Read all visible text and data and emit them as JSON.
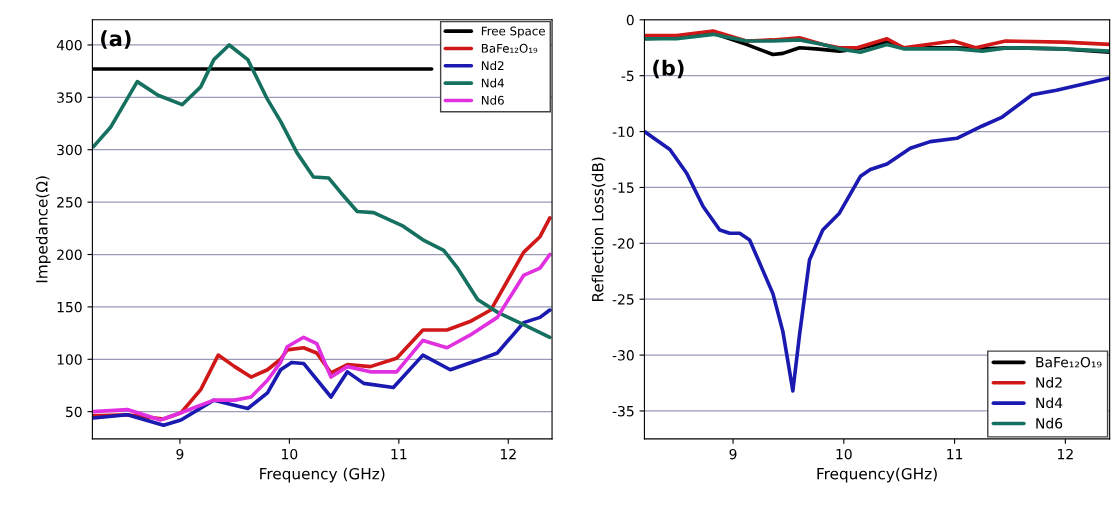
{
  "chart_data": [
    {
      "type": "line",
      "xlabel": "Frequency (GHz)",
      "ylabel": "Impedance(Ω)",
      "annotations": [
        "(a)"
      ],
      "xlim": [
        8.2,
        12.4
      ],
      "ylim": [
        24,
        424
      ],
      "xticks": [
        9,
        10,
        11,
        12
      ],
      "yticks": [
        50,
        100,
        150,
        200,
        250,
        300,
        350,
        400
      ],
      "grid": "y",
      "legend": "top right",
      "line_style": "solid",
      "series": [
        {
          "name": "Free Space",
          "color": "#000000",
          "x": [
            8.2,
            11.3
          ],
          "values": [
            377,
            377
          ]
        },
        {
          "name": "BaFe₁₂O₁₉",
          "color": "#d01818",
          "x": [
            8.21,
            8.52,
            8.85,
            9.01,
            9.19,
            9.35,
            9.5,
            9.65,
            9.8,
            9.92,
            9.98,
            10.13,
            10.25,
            10.38,
            10.53,
            10.74,
            10.98,
            11.22,
            11.44,
            11.65,
            11.84,
            12.14,
            12.29,
            12.38
          ],
          "values": [
            46,
            47,
            43,
            49,
            71,
            104,
            93,
            83,
            90,
            100,
            109,
            111,
            106,
            87,
            95,
            93,
            101,
            128,
            128,
            136,
            147,
            202,
            217,
            235
          ]
        },
        {
          "name": "Nd2",
          "color": "#1a1ab0",
          "x": [
            8.21,
            8.52,
            8.85,
            9.01,
            9.31,
            9.62,
            9.8,
            9.92,
            10.02,
            10.13,
            10.38,
            10.53,
            10.68,
            10.95,
            11.22,
            11.47,
            11.72,
            11.9,
            12.14,
            12.29,
            12.38
          ],
          "values": [
            44,
            47,
            37,
            42,
            61,
            53,
            68,
            90,
            97,
            96,
            64,
            88,
            77,
            73,
            104,
            90,
            99,
            106,
            135,
            140,
            147
          ]
        },
        {
          "name": "Nd4",
          "color": "#167060",
          "x": [
            8.21,
            8.37,
            8.61,
            8.8,
            9.02,
            9.19,
            9.31,
            9.45,
            9.62,
            9.8,
            9.92,
            10.07,
            10.22,
            10.36,
            10.47,
            10.62,
            10.77,
            11.04,
            11.22,
            11.41,
            11.53,
            11.72,
            11.9,
            12.14,
            12.38
          ],
          "values": [
            303,
            322,
            365,
            352,
            343,
            360,
            386,
            400,
            386,
            348,
            327,
            297,
            274,
            273,
            259,
            241,
            240,
            227,
            214,
            204,
            188,
            157,
            145,
            133,
            121
          ]
        },
        {
          "name": "Nd6",
          "color": "#e030e0",
          "x": [
            8.21,
            8.52,
            8.82,
            9.01,
            9.31,
            9.5,
            9.65,
            9.8,
            9.92,
            9.98,
            10.13,
            10.25,
            10.38,
            10.53,
            10.74,
            10.98,
            11.22,
            11.44,
            11.65,
            11.9,
            12.14,
            12.29,
            12.38
          ],
          "values": [
            50,
            52,
            42,
            49,
            61,
            61,
            64,
            80,
            97,
            112,
            121,
            115,
            83,
            93,
            88,
            88,
            118,
            111,
            123,
            140,
            180,
            187,
            200
          ]
        }
      ]
    },
    {
      "type": "line",
      "xlabel": "Frequency(GHz)",
      "ylabel": "Reflection Loss(dB)",
      "annotations": [
        "(b)"
      ],
      "xlim": [
        8.2,
        12.4
      ],
      "ylim": [
        -37.5,
        0
      ],
      "xticks": [
        9,
        10,
        11,
        12
      ],
      "yticks": [
        0,
        -5,
        -10,
        -15,
        -20,
        -25,
        -30,
        -35
      ],
      "grid": "y",
      "legend": "bottom right",
      "line_style": "solid",
      "series": [
        {
          "name": "BaFe₁₂O₁₉",
          "color": "#000000",
          "x": [
            8.2,
            8.49,
            8.79,
            9.12,
            9.36,
            9.45,
            9.6,
            9.75,
            9.96,
            10.12,
            10.39,
            10.54,
            11.02,
            11.25,
            11.49,
            11.98,
            12.4
          ],
          "values": [
            -1.7,
            -1.6,
            -1.1,
            -2.2,
            -3.1,
            -3.0,
            -2.5,
            -2.6,
            -2.8,
            -2.6,
            -2.0,
            -2.5,
            -2.5,
            -2.6,
            -2.5,
            -2.6,
            -2.9
          ]
        },
        {
          "name": "Nd2",
          "color": "#d01818",
          "x": [
            8.2,
            8.49,
            8.82,
            9.12,
            9.36,
            9.6,
            9.81,
            9.96,
            10.12,
            10.39,
            10.54,
            10.99,
            11.19,
            11.46,
            11.98,
            12.4
          ],
          "values": [
            -1.4,
            -1.4,
            -1.0,
            -1.9,
            -1.8,
            -1.6,
            -2.2,
            -2.5,
            -2.5,
            -1.7,
            -2.5,
            -1.9,
            -2.5,
            -1.9,
            -2.0,
            -2.2
          ]
        },
        {
          "name": "Nd4",
          "color": "#1a1ab0",
          "x": [
            8.2,
            8.43,
            8.58,
            8.73,
            8.88,
            8.97,
            9.06,
            9.15,
            9.36,
            9.45,
            9.54,
            9.6,
            9.69,
            9.81,
            9.96,
            10.15,
            10.24,
            10.39,
            10.6,
            10.78,
            11.02,
            11.25,
            11.43,
            11.7,
            11.92,
            12.4
          ],
          "values": [
            -10.0,
            -11.6,
            -13.7,
            -16.7,
            -18.8,
            -19.1,
            -19.1,
            -19.7,
            -24.5,
            -27.9,
            -33.2,
            -28.2,
            -21.5,
            -18.8,
            -17.3,
            -14.0,
            -13.4,
            -12.9,
            -11.5,
            -10.9,
            -10.6,
            -9.5,
            -8.7,
            -6.7,
            -6.3,
            -5.2
          ]
        },
        {
          "name": "Nd6",
          "color": "#167060",
          "x": [
            8.2,
            8.49,
            8.82,
            9.12,
            9.36,
            9.6,
            9.81,
            9.96,
            10.15,
            10.39,
            10.54,
            11.02,
            11.25,
            11.49,
            11.98,
            12.4
          ],
          "values": [
            -1.7,
            -1.7,
            -1.3,
            -1.9,
            -1.9,
            -1.8,
            -2.2,
            -2.6,
            -2.9,
            -2.2,
            -2.6,
            -2.6,
            -2.8,
            -2.5,
            -2.6,
            -2.8
          ]
        }
      ]
    }
  ]
}
